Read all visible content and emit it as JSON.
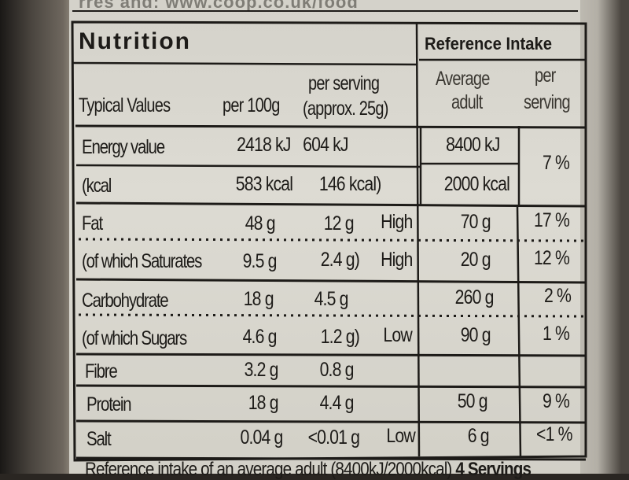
{
  "header_url": "rres and: www.coop.co.uk/food",
  "panel": {
    "title": "Nutrition",
    "reference_title": "Reference Intake",
    "col_typical": "Typical Values",
    "col_per100": "per 100g",
    "col_serving_1": "per serving",
    "col_serving_2": "(approx. 25g)",
    "col_avg_1": "Average",
    "col_avg_2": "adult",
    "col_pct_1": "per",
    "col_pct_2": "serving"
  },
  "rows": [
    {
      "label": "Energy value",
      "per100": "2418 kJ",
      "serving": "604 kJ",
      "level": "",
      "ri": "8400 kJ",
      "pct": "7 %"
    },
    {
      "label": "(kcal",
      "per100": "583 kcal",
      "serving": "146 kcal)",
      "level": "",
      "ri": "2000 kcal",
      "pct": ""
    },
    {
      "label": "Fat",
      "per100": "48 g",
      "serving": "12 g",
      "level": "High",
      "ri": "70 g",
      "pct": "17 %"
    },
    {
      "label": "(of which Saturates",
      "per100": "9.5 g",
      "serving": "2.4 g)",
      "level": "High",
      "ri": "20 g",
      "pct": "12 %"
    },
    {
      "label": "Carbohydrate",
      "per100": "18 g",
      "serving": "4.5 g",
      "level": "",
      "ri": "260 g",
      "pct": "2 %"
    },
    {
      "label": "(of which Sugars",
      "per100": "4.6 g",
      "serving": "1.2 g)",
      "level": "Low",
      "ri": "90 g",
      "pct": "1 %"
    },
    {
      "label": "Fibre",
      "per100": "3.2 g",
      "serving": "0.8 g",
      "level": "",
      "ri": "",
      "pct": ""
    },
    {
      "label": "Protein",
      "per100": "18 g",
      "serving": "4.4 g",
      "level": "",
      "ri": "50 g",
      "pct": "9 %"
    },
    {
      "label": "Salt",
      "per100": "0.04 g",
      "serving": "<0.01 g",
      "level": "Low",
      "ri": "6 g",
      "pct": "<1 %"
    }
  ],
  "footer": {
    "text": "Reference intake of an average adult (8400kJ/2000kcal)",
    "servings": "4 Servings"
  }
}
